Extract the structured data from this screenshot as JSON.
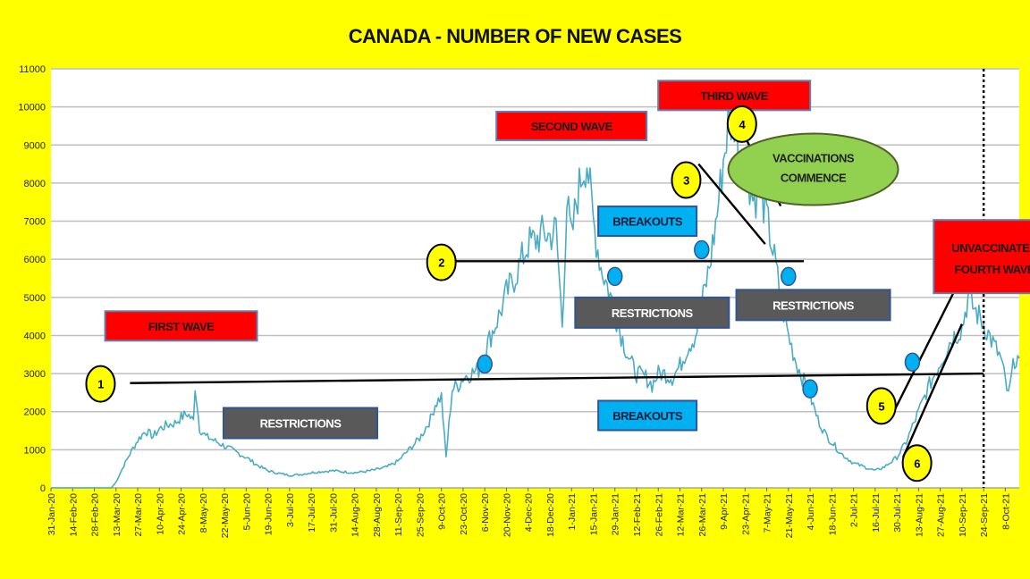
{
  "chart_data": {
    "type": "line",
    "title": "CANADA - NUMBER OF NEW CASES",
    "xlabel": "",
    "ylabel": "",
    "ylim": [
      0,
      11000
    ],
    "yticks": [
      0,
      1000,
      2000,
      3000,
      4000,
      5000,
      6000,
      7000,
      8000,
      9000,
      10000,
      11000
    ],
    "grid": true,
    "xlim": [
      "2020-01-31",
      "2021-10-17"
    ],
    "xtick_labels": [
      "31-Jan-20",
      "14-Feb-20",
      "28-Feb-20",
      "13-Mar-20",
      "27-Mar-20",
      "10-Apr-20",
      "24-Apr-20",
      "8-May-20",
      "22-May-20",
      "5-Jun-20",
      "19-Jun-20",
      "3-Jul-20",
      "17-Jul-20",
      "31-Jul-20",
      "14-Aug-20",
      "28-Aug-20",
      "11-Sep-20",
      "25-Sep-20",
      "9-Oct-20",
      "23-Oct-20",
      "6-Nov-20",
      "20-Nov-20",
      "4-Dec-20",
      "18-Dec-20",
      "1-Jan-21",
      "15-Jan-21",
      "29-Jan-21",
      "12-Feb-21",
      "26-Feb-21",
      "12-Mar-21",
      "26-Mar-21",
      "9-Apr-21",
      "23-Apr-21",
      "7-May-21",
      "21-May-21",
      "4-Jun-21",
      "18-Jun-21",
      "2-Jul-21",
      "16-Jul-21",
      "30-Jul-21",
      "13-Aug-21",
      "27-Aug-21",
      "10-Sep-21",
      "24-Sep-21",
      "8-Oct-21"
    ],
    "series": [
      {
        "name": "",
        "color": "#4BACC6",
        "points": [
          [
            "2020-01-31",
            0
          ],
          [
            "2020-02-28",
            0
          ],
          [
            "2020-03-10",
            0
          ],
          [
            "2020-03-13",
            150
          ],
          [
            "2020-03-17",
            500
          ],
          [
            "2020-03-22",
            900
          ],
          [
            "2020-03-27",
            1250
          ],
          [
            "2020-04-01",
            1500
          ],
          [
            "2020-04-06",
            1350
          ],
          [
            "2020-04-10",
            1550
          ],
          [
            "2020-04-15",
            1650
          ],
          [
            "2020-04-20",
            1700
          ],
          [
            "2020-04-24",
            1850
          ],
          [
            "2020-04-28",
            1950
          ],
          [
            "2020-05-02",
            1750
          ],
          [
            "2020-05-03",
            2700
          ],
          [
            "2020-05-06",
            1550
          ],
          [
            "2020-05-10",
            1350
          ],
          [
            "2020-05-15",
            1250
          ],
          [
            "2020-05-22",
            1100
          ],
          [
            "2020-05-29",
            950
          ],
          [
            "2020-06-05",
            800
          ],
          [
            "2020-06-12",
            600
          ],
          [
            "2020-06-19",
            450
          ],
          [
            "2020-06-26",
            380
          ],
          [
            "2020-07-03",
            330
          ],
          [
            "2020-07-10",
            350
          ],
          [
            "2020-07-17",
            400
          ],
          [
            "2020-07-24",
            430
          ],
          [
            "2020-07-31",
            450
          ],
          [
            "2020-08-07",
            420
          ],
          [
            "2020-08-14",
            400
          ],
          [
            "2020-08-21",
            430
          ],
          [
            "2020-08-28",
            480
          ],
          [
            "2020-09-04",
            550
          ],
          [
            "2020-09-11",
            700
          ],
          [
            "2020-09-18",
            1000
          ],
          [
            "2020-09-25",
            1300
          ],
          [
            "2020-10-02",
            1800
          ],
          [
            "2020-10-05",
            2200
          ],
          [
            "2020-10-09",
            2400
          ],
          [
            "2020-10-12",
            800
          ],
          [
            "2020-10-16",
            2600
          ],
          [
            "2020-10-20",
            2700
          ],
          [
            "2020-10-23",
            2900
          ],
          [
            "2020-10-28",
            3000
          ],
          [
            "2020-11-02",
            3100
          ],
          [
            "2020-11-06",
            3600
          ],
          [
            "2020-11-11",
            4100
          ],
          [
            "2020-11-16",
            4600
          ],
          [
            "2020-11-20",
            5100
          ],
          [
            "2020-11-25",
            5500
          ],
          [
            "2020-11-30",
            6000
          ],
          [
            "2020-12-04",
            6400
          ],
          [
            "2020-12-09",
            6500
          ],
          [
            "2020-12-14",
            6700
          ],
          [
            "2020-12-18",
            6600
          ],
          [
            "2020-12-22",
            6800
          ],
          [
            "2020-12-26",
            4300
          ],
          [
            "2020-12-29",
            7500
          ],
          [
            "2021-01-01",
            6500
          ],
          [
            "2021-01-04",
            7500
          ],
          [
            "2021-01-08",
            8300
          ],
          [
            "2021-01-11",
            8600
          ],
          [
            "2021-01-15",
            7000
          ],
          [
            "2021-01-20",
            5800
          ],
          [
            "2021-01-25",
            5200
          ],
          [
            "2021-01-29",
            4600
          ],
          [
            "2021-02-03",
            3900
          ],
          [
            "2021-02-08",
            3300
          ],
          [
            "2021-02-12",
            3000
          ],
          [
            "2021-02-18",
            2900
          ],
          [
            "2021-02-22",
            2700
          ],
          [
            "2021-02-26",
            3000
          ],
          [
            "2021-03-02",
            3000
          ],
          [
            "2021-03-07",
            2900
          ],
          [
            "2021-03-12",
            3200
          ],
          [
            "2021-03-17",
            3700
          ],
          [
            "2021-03-22",
            4000
          ],
          [
            "2021-03-26",
            4800
          ],
          [
            "2021-03-31",
            5800
          ],
          [
            "2021-04-05",
            7200
          ],
          [
            "2021-04-09",
            8600
          ],
          [
            "2021-04-12",
            9500
          ],
          [
            "2021-04-16",
            9700
          ],
          [
            "2021-04-20",
            8200
          ],
          [
            "2021-04-23",
            8700
          ],
          [
            "2021-04-28",
            7600
          ],
          [
            "2021-05-03",
            7800
          ],
          [
            "2021-05-07",
            7100
          ],
          [
            "2021-05-12",
            6000
          ],
          [
            "2021-05-16",
            5000
          ],
          [
            "2021-05-21",
            4000
          ],
          [
            "2021-05-26",
            3300
          ],
          [
            "2021-05-31",
            2800
          ],
          [
            "2021-06-04",
            2400
          ],
          [
            "2021-06-09",
            1800
          ],
          [
            "2021-06-14",
            1400
          ],
          [
            "2021-06-18",
            1200
          ],
          [
            "2021-06-24",
            900
          ],
          [
            "2021-07-02",
            650
          ],
          [
            "2021-07-09",
            550
          ],
          [
            "2021-07-16",
            450
          ],
          [
            "2021-07-22",
            550
          ],
          [
            "2021-07-30",
            800
          ],
          [
            "2021-08-05",
            1200
          ],
          [
            "2021-08-13",
            2000
          ],
          [
            "2021-08-20",
            2700
          ],
          [
            "2021-08-27",
            3300
          ],
          [
            "2021-09-03",
            3900
          ],
          [
            "2021-09-10",
            4200
          ],
          [
            "2021-09-14",
            5000
          ],
          [
            "2021-09-18",
            4700
          ],
          [
            "2021-09-24",
            4300
          ],
          [
            "2021-09-30",
            3800
          ],
          [
            "2021-10-05",
            3400
          ],
          [
            "2021-10-10",
            2400
          ],
          [
            "2021-10-14",
            3400
          ],
          [
            "2021-10-17",
            3400
          ]
        ]
      }
    ],
    "reference_lines": [
      {
        "label": "1",
        "from": [
          "2020-03-22",
          2750
        ],
        "to": [
          "2021-09-24",
          3000
        ]
      },
      {
        "label": "2",
        "from": [
          "2020-10-16",
          5950
        ],
        "to": [
          "2021-05-31",
          5950
        ]
      },
      {
        "label": "3",
        "from": [
          "2021-03-24",
          8500
        ],
        "to": [
          "2021-05-06",
          6400
        ]
      },
      {
        "label": "4",
        "from": [
          "2021-04-18",
          9600
        ],
        "to": [
          "2021-05-16",
          7400
        ]
      },
      {
        "label": "5",
        "from": [
          "2021-07-28",
          2000
        ],
        "to": [
          "2021-09-08",
          5400
        ]
      },
      {
        "label": "6",
        "from": [
          "2021-08-03",
          800
        ],
        "to": [
          "2021-09-10",
          4300
        ]
      }
    ],
    "vertical_marker": {
      "x": "2021-09-24",
      "style": "dotted"
    },
    "circle_markers": [
      {
        "label": "1",
        "x": "2020-03-03",
        "y": 2730
      },
      {
        "label": "2",
        "x": "2020-10-09",
        "y": 5920
      },
      {
        "label": "3",
        "x": "2021-03-16",
        "y": 8080
      },
      {
        "label": "4",
        "x": "2021-04-21",
        "y": 9550
      },
      {
        "label": "5",
        "x": "2021-07-20",
        "y": 2150
      },
      {
        "label": "6",
        "x": "2021-08-12",
        "y": 650
      }
    ],
    "blue_dots": [
      {
        "x": "2020-11-06",
        "y": 3250
      },
      {
        "x": "2021-01-29",
        "y": 5550
      },
      {
        "x": "2021-03-26",
        "y": 6250
      },
      {
        "x": "2021-05-21",
        "y": 5550
      },
      {
        "x": "2021-06-04",
        "y": 2600
      },
      {
        "x": "2021-08-09",
        "y": 3300
      }
    ],
    "annotations": [
      {
        "text": "FIRST WAVE",
        "style": "red",
        "x": "2020-04-24",
        "y": 4250
      },
      {
        "text": "SECOND WAVE",
        "style": "red",
        "x": "2021-01-01",
        "y": 9500
      },
      {
        "text": "THIRD WAVE",
        "style": "red",
        "x": "2021-04-16",
        "y": 10300
      },
      {
        "text": "UNVACCINATED FOURTH WAVE",
        "lines": [
          "UNVACCINATED",
          "FOURTH WAVE"
        ],
        "style": "red",
        "x": "2021-10-01",
        "y": 6070
      },
      {
        "text": "VACCINATIONS COMMENCE",
        "lines": [
          "VACCINATIONS",
          "COMMENCE"
        ],
        "style": "green-ellipse",
        "x": "2021-06-06",
        "y": 8360
      },
      {
        "text": "BREAKOUTS",
        "style": "blue",
        "x": "2021-02-19",
        "y": 7000
      },
      {
        "text": "BREAKOUTS",
        "style": "blue",
        "x": "2021-02-19",
        "y": 1900
      },
      {
        "text": "RESTRICTIONS",
        "style": "gray",
        "x": "2020-07-10",
        "y": 1700
      },
      {
        "text": "RESTRICTIONS",
        "style": "gray",
        "x": "2021-02-22",
        "y": 4600
      },
      {
        "text": "RESTRICTIONS",
        "style": "gray",
        "x": "2021-06-06",
        "y": 4800
      }
    ]
  },
  "colors": {
    "background": "#FFFF00",
    "plot_bg": "#FFFFFF",
    "grid": "#BFBFBF",
    "line": "#4BACC6",
    "red": "#FF0000",
    "blue": "#00B0F0",
    "gray": "#595959",
    "green": "#92D050",
    "marker_yellow": "#FFFF00"
  }
}
